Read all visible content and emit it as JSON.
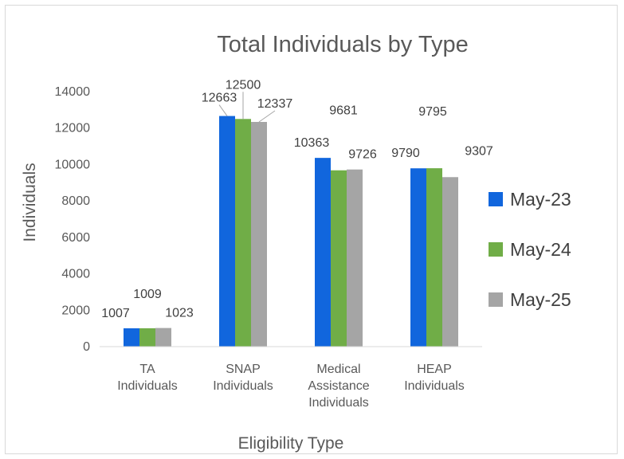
{
  "chart_data": {
    "type": "bar",
    "title": "Total Individuals by Type",
    "xlabel": "Eligibility Type",
    "ylabel": "Individuals",
    "ylim": [
      0,
      14000
    ],
    "yticks": [
      0,
      2000,
      4000,
      6000,
      8000,
      10000,
      12000,
      14000
    ],
    "grid": false,
    "legend_position": "right",
    "categories": [
      [
        "TA",
        "Individuals"
      ],
      [
        "SNAP",
        "Individuals"
      ],
      [
        "Medical",
        "Assistance",
        "Individuals"
      ],
      [
        "HEAP",
        "Individuals"
      ]
    ],
    "series": [
      {
        "name": "May-23",
        "color": "#1166dd",
        "values": [
          1007,
          12663,
          10363,
          9790
        ]
      },
      {
        "name": "May-24",
        "color": "#70ad47",
        "values": [
          1009,
          12500,
          9681,
          9795
        ]
      },
      {
        "name": "May-25",
        "color": "#a5a5a5",
        "values": [
          1023,
          12337,
          9726,
          9307
        ]
      }
    ]
  }
}
